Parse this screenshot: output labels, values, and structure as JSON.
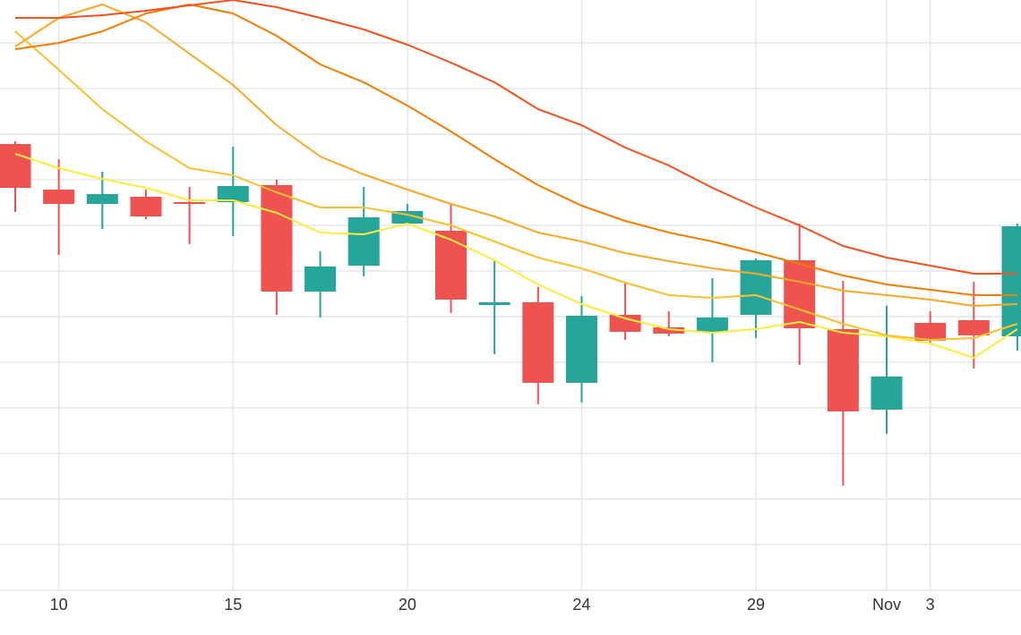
{
  "chart_data": {
    "type": "candlestick",
    "categories": [
      null,
      "10",
      null,
      null,
      null,
      "15",
      null,
      null,
      null,
      "20",
      null,
      null,
      null,
      "24",
      null,
      null,
      null,
      "29",
      null,
      null,
      "Nov",
      "3",
      null,
      null
    ],
    "open": [
      499,
      448,
      432,
      440,
      434,
      434,
      453,
      334,
      363,
      410,
      402,
      319,
      322,
      232,
      308,
      294,
      289,
      308,
      369,
      292,
      202,
      299,
      302,
      284
    ],
    "high": [
      502,
      482,
      468,
      448,
      451,
      496,
      459,
      379,
      451,
      432,
      432,
      368,
      339,
      329,
      345,
      312,
      349,
      371,
      410,
      346,
      318,
      312,
      345,
      410
    ],
    "low": [
      423,
      375,
      404,
      415,
      387,
      396,
      308,
      305,
      351,
      410,
      310,
      264,
      208,
      210,
      280,
      284,
      255,
      282,
      252,
      117,
      175,
      277,
      248,
      268
    ],
    "close": [
      450,
      432,
      443,
      418,
      433,
      452,
      334,
      362,
      417,
      424,
      325,
      322,
      232,
      307,
      289,
      287,
      305,
      369,
      293,
      200,
      239,
      279,
      285,
      407
    ],
    "up_color": "#26a69a",
    "down_color": "#ef5350",
    "series": [
      {
        "color": "#ffeb3b",
        "values": [
          488,
          472,
          460,
          450,
          436,
          436,
          422,
          400,
          398,
          410,
          392,
          369,
          342,
          320,
          304,
          292,
          288,
          292,
          300,
          288,
          284,
          276,
          260,
          292
        ]
      },
      {
        "color": "#fbc02d",
        "values": [
          625,
          582,
          538,
          502,
          472,
          464,
          445,
          428,
          428,
          420,
          408,
          390,
          372,
          360,
          344,
          330,
          327,
          330,
          314,
          298,
          285,
          280,
          282,
          298
        ]
      },
      {
        "color": "#f9a825",
        "values": [
          608,
          640,
          655,
          635,
          600,
          565,
          520,
          485,
          465,
          448,
          432,
          418,
          400,
          390,
          377,
          368,
          360,
          354,
          345,
          335,
          330,
          325,
          318,
          320
        ]
      },
      {
        "color": "#f57c00",
        "values": [
          605,
          612,
          625,
          645,
          655,
          645,
          620,
          588,
          568,
          542,
          513,
          482,
          453,
          430,
          413,
          400,
          390,
          378,
          365,
          352,
          342,
          336,
          330,
          330
        ]
      },
      {
        "color": "#f4511e",
        "values": [
          640,
          640,
          643,
          648,
          654,
          660,
          652,
          640,
          627,
          610,
          590,
          568,
          538,
          520,
          495,
          475,
          450,
          428,
          408,
          385,
          372,
          363,
          354,
          354
        ]
      }
    ],
    "ylim": [
      0,
      660
    ],
    "yticks": [
      0,
      51,
      102,
      153,
      204,
      255,
      306,
      357,
      408,
      459,
      510,
      561,
      612
    ],
    "grid": true
  }
}
